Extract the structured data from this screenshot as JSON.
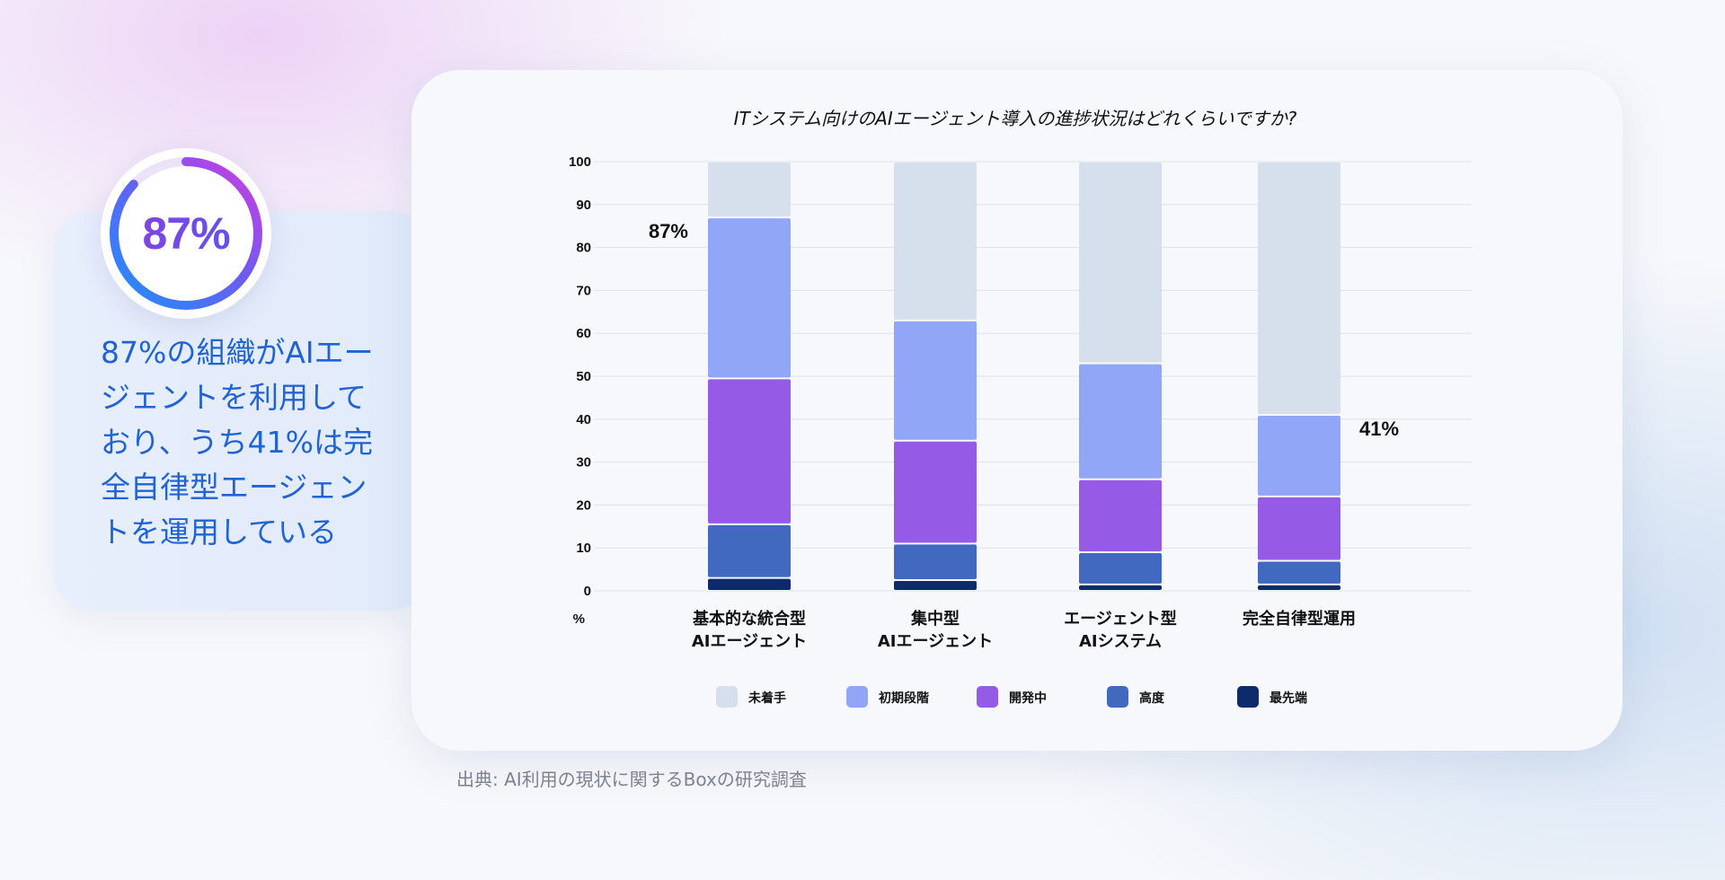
{
  "stat": {
    "percent_label": "87%",
    "percent_value": 87,
    "text": "87%の組織がAIエージェントを利用しており、うち41%は完全自律型エージェントを運用している",
    "lines": [
      "87%の組織がAIエー",
      "ジェントを利用して",
      "おり、うち41%は完",
      "全自律型エージェン",
      "トを運用している"
    ]
  },
  "source": "出典: AI利用の現状に関するBoxの研究調査",
  "chart_data": {
    "type": "bar",
    "stacked": true,
    "title": "ITシステム向けのAIエージェント導入の進捗状況はどれくらいですか?",
    "xlabel": "",
    "ylabel": "%",
    "ylim": [
      0,
      100
    ],
    "yticks": [
      0,
      10,
      20,
      30,
      40,
      50,
      60,
      70,
      80,
      90,
      100
    ],
    "grid": true,
    "legend_position": "bottom",
    "categories": [
      [
        "基本的な統合型",
        "AIエージェント"
      ],
      [
        "集中型",
        "AIエージェント"
      ],
      [
        "エージェント型",
        "AIシステム"
      ],
      [
        "完全自律型運用"
      ]
    ],
    "series": [
      {
        "name": "最先端",
        "color": "#0d2a6b",
        "values": [
          3,
          2.5,
          1.5,
          1.5
        ]
      },
      {
        "name": "高度",
        "color": "#4169c0",
        "values": [
          12.5,
          8.5,
          7.5,
          5.5
        ]
      },
      {
        "name": "開発中",
        "color": "#955ae6",
        "values": [
          34,
          24,
          17,
          15
        ]
      },
      {
        "name": "初期段階",
        "color": "#92a6f7",
        "values": [
          37.5,
          28,
          27,
          19
        ]
      },
      {
        "name": "未着手",
        "color": "#d6e0ec",
        "values": [
          13,
          37,
          47,
          59
        ]
      }
    ],
    "legend_order": [
      "未着手",
      "初期段階",
      "開発中",
      "高度",
      "最先端"
    ],
    "annotations": [
      {
        "text": "87%",
        "category_index": 0,
        "value": 87,
        "side": "left"
      },
      {
        "text": "41%",
        "category_index": 3,
        "value": 41,
        "side": "right"
      }
    ]
  }
}
